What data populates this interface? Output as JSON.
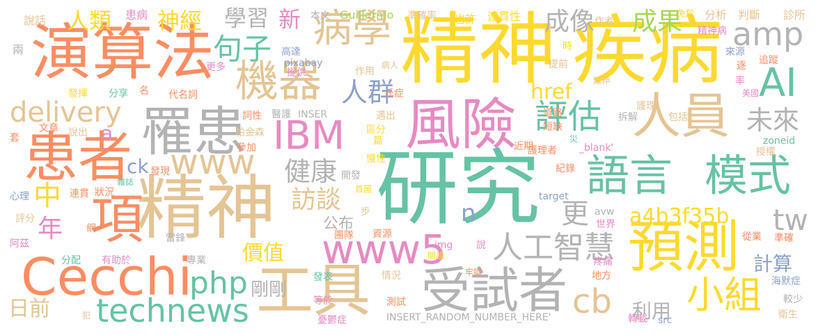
{
  "palette": {
    "teal": "#66c2a5",
    "orange": "#fc8d62",
    "blue": "#8da0cb",
    "pink": "#e78ac3",
    "green": "#a6d854",
    "yellow": "#ffd92f",
    "tan": "#e5c494",
    "gray": "#b3b3b3"
  },
  "words": [
    {
      "text": "研究",
      "color": "teal"
    },
    {
      "text": "精神",
      "color": "yellow"
    },
    {
      "text": "疾病",
      "color": "yellow"
    },
    {
      "text": "演算法",
      "color": "orange"
    },
    {
      "text": "精神",
      "color": "tan"
    },
    {
      "text": "項",
      "color": "orange"
    },
    {
      "text": "患者",
      "color": "orange"
    },
    {
      "text": "風險",
      "color": "pink"
    },
    {
      "text": "工具",
      "color": "tan"
    },
    {
      "text": "受試者",
      "color": "gray"
    },
    {
      "text": "預測",
      "color": "yellow"
    },
    {
      "text": "Cecchi",
      "color": "orange"
    },
    {
      "text": "罹患",
      "color": "gray"
    },
    {
      "text": "語言",
      "color": "teal"
    },
    {
      "text": "模式",
      "color": "teal"
    },
    {
      "text": "人員",
      "color": "tan"
    },
    {
      "text": "病學",
      "color": "tan"
    },
    {
      "text": "機器",
      "color": "tan"
    },
    {
      "text": "IBM",
      "color": "pink"
    },
    {
      "text": "www5",
      "color": "pink"
    },
    {
      "text": "technews",
      "color": "teal"
    },
    {
      "text": "小組",
      "color": "yellow"
    },
    {
      "text": "人工智慧",
      "color": "gray"
    },
    {
      "text": "評估",
      "color": "teal"
    },
    {
      "text": "AI",
      "color": "teal"
    },
    {
      "text": "amp",
      "color": "gray"
    },
    {
      "text": "delivery",
      "color": "tan"
    },
    {
      "text": "www",
      "color": "tan"
    },
    {
      "text": "php",
      "color": "teal"
    },
    {
      "text": "a4b3f35b",
      "color": "yellow"
    },
    {
      "text": "健康",
      "color": "gray"
    },
    {
      "text": "人群",
      "color": "blue"
    },
    {
      "text": "句子",
      "color": "teal"
    },
    {
      "text": "人類",
      "color": "yellow"
    },
    {
      "text": "神經",
      "color": "yellow"
    },
    {
      "text": "學習",
      "color": "gray"
    },
    {
      "text": "成像",
      "color": "gray"
    },
    {
      "text": "成果",
      "color": "green"
    },
    {
      "text": "未來",
      "color": "gray"
    },
    {
      "text": "tw",
      "color": "gray"
    },
    {
      "text": "cb",
      "color": "tan"
    },
    {
      "text": "href",
      "color": "yellow"
    },
    {
      "text": "訪談",
      "color": "tan"
    },
    {
      "text": "中",
      "color": "yellow"
    },
    {
      "text": "年",
      "color": "pink"
    },
    {
      "text": "更",
      "color": "gray"
    },
    {
      "text": "價值",
      "color": "yellow"
    },
    {
      "text": "公布",
      "color": "gray"
    },
    {
      "text": "剛剛",
      "color": "gray"
    },
    {
      "text": "日前",
      "color": "tan"
    },
    {
      "text": "計算",
      "color": "blue"
    },
    {
      "text": "利用",
      "color": "gray"
    },
    {
      "text": "新",
      "color": "pink"
    },
    {
      "text": "ck",
      "color": "blue"
    },
    {
      "text": "a",
      "color": "pink"
    },
    {
      "text": "n",
      "color": "blue"
    },
    {
      "text": "說話",
      "color": "tan"
    },
    {
      "text": "患病",
      "color": "pink"
    },
    {
      "text": "本文",
      "color": "gray"
    },
    {
      "text": "Guillermo",
      "color": "green"
    },
    {
      "text": "準確率",
      "color": "tan"
    },
    {
      "text": "也許",
      "color": "yellow"
    },
    {
      "text": "連貫性",
      "color": "yellow"
    },
    {
      "text": "作者",
      "color": "tan"
    },
    {
      "text": "免於",
      "color": "yellow"
    },
    {
      "text": "分析",
      "color": "tan"
    },
    {
      "text": "判斷",
      "color": "tan"
    },
    {
      "text": "診所",
      "color": "tan"
    },
    {
      "text": "精神病",
      "color": "pink"
    },
    {
      "text": "兩",
      "color": "gray"
    },
    {
      "text": "高達",
      "color": "blue"
    },
    {
      "text": "時",
      "color": "yellow"
    },
    {
      "text": "來源",
      "color": "blue"
    },
    {
      "text": "更多",
      "color": "pink"
    },
    {
      "text": "pixabay",
      "color": "blue"
    },
    {
      "text": "提供",
      "color": "pink"
    },
    {
      "text": "作用",
      "color": "tan"
    },
    {
      "text": "病人",
      "color": "tan"
    },
    {
      "text": "提前",
      "color": "tan"
    },
    {
      "text": "逐",
      "color": "orange"
    },
    {
      "text": "率",
      "color": "pink"
    },
    {
      "text": "追蹤",
      "color": "orange"
    },
    {
      "text": "發揮",
      "color": "yellow"
    },
    {
      "text": "分享",
      "color": "teal"
    },
    {
      "text": "名",
      "color": "orange"
    },
    {
      "text": "代名詞",
      "color": "orange"
    },
    {
      "text": "氏症",
      "color": "orange"
    },
    {
      "text": "延伸",
      "color": "tan"
    },
    {
      "text": "美國",
      "color": "pink"
    },
    {
      "text": "詞性",
      "color": "orange"
    },
    {
      "text": "醫護",
      "color": "gray"
    },
    {
      "text": "INSER",
      "color": "gray"
    },
    {
      "text": "道路",
      "color": "orange"
    },
    {
      "text": "護理",
      "color": "tan"
    },
    {
      "text": "包括",
      "color": "tan"
    },
    {
      "text": "文章",
      "color": "orange"
    },
    {
      "text": "邁出",
      "color": "tan"
    },
    {
      "text": "短缺",
      "color": "orange"
    },
    {
      "text": "說出",
      "color": "tan"
    },
    {
      "text": "帕金森",
      "color": "tan"
    },
    {
      "text": "區分",
      "color": "yellow"
    },
    {
      "text": "篇",
      "color": "yellow"
    },
    {
      "text": "拆解",
      "color": "gray"
    },
    {
      "text": "參加",
      "color": "orange"
    },
    {
      "text": "災",
      "color": "teal"
    },
    {
      "text": "近期",
      "color": "orange"
    },
    {
      "text": "護理者",
      "color": "orange"
    },
    {
      "text": "_blank'",
      "color": "pink"
    },
    {
      "text": "zoneid",
      "color": "teal"
    },
    {
      "text": "授權",
      "color": "tan"
    },
    {
      "text": "慢性",
      "color": "yellow"
    },
    {
      "text": "開發",
      "color": "gray"
    },
    {
      "text": "發現",
      "color": "orange"
    },
    {
      "text": "紀錄",
      "color": "orange"
    },
    {
      "text": "雜誌",
      "color": "teal"
    },
    {
      "text": "首圖",
      "color": "yellow"
    },
    {
      "text": "心理",
      "color": "blue"
    },
    {
      "text": "連貫",
      "color": "orange"
    },
    {
      "text": "狀況",
      "color": "orange"
    },
    {
      "text": "target",
      "color": "blue"
    },
    {
      "text": "步",
      "color": "tan"
    },
    {
      "text": "avw",
      "color": "gray"
    },
    {
      "text": "評分",
      "color": "tan"
    },
    {
      "text": "網",
      "color": "orange"
    },
    {
      "text": "世界",
      "color": "pink"
    },
    {
      "text": "團隊",
      "color": "orange"
    },
    {
      "text": "資源",
      "color": "orange"
    },
    {
      "text": "從業",
      "color": "orange"
    },
    {
      "text": "準確",
      "color": "orange"
    },
    {
      "text": "阿茲",
      "color": "pink"
    },
    {
      "text": "雷鋒",
      "color": "gray"
    },
    {
      "text": "img",
      "color": "pink"
    },
    {
      "text": "說",
      "color": "pink"
    },
    {
      "text": "分配",
      "color": "teal"
    },
    {
      "text": "有助於",
      "color": "pink"
    },
    {
      "text": "專業",
      "color": "gray"
    },
    {
      "text": "閱讀",
      "color": "yellow"
    },
    {
      "text": "疼痛",
      "color": "pink"
    },
    {
      "text": "牢獄",
      "color": "orange"
    },
    {
      "text": "地方",
      "color": "orange"
    },
    {
      "text": "海默症",
      "color": "blue"
    },
    {
      "text": "發表",
      "color": "teal"
    },
    {
      "text": "情況",
      "color": "tan"
    },
    {
      "text": "等於",
      "color": "pink"
    },
    {
      "text": "測試",
      "color": "orange"
    },
    {
      "text": "較少",
      "color": "gray"
    },
    {
      "text": "犯",
      "color": "tan"
    },
    {
      "text": "INSERT_RANDOM_NUMBER_HERE'",
      "color": "gray"
    },
    {
      "text": "憂鬱症",
      "color": "pink"
    },
    {
      "text": "轉載",
      "color": "pink"
    },
    {
      "text": "src",
      "color": "blue"
    },
    {
      "text": "衛生",
      "color": "tan"
    },
    {
      "text": "套",
      "color": "orange"
    }
  ]
}
